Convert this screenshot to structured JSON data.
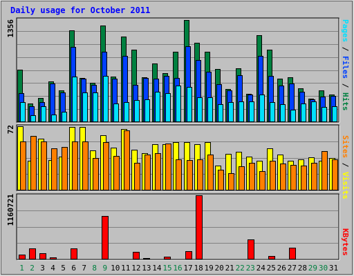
{
  "title": "Daily usage for October 2011",
  "colors": {
    "background": "#c0c0c0",
    "frame": "#e0e0e0",
    "title": "#0000ff",
    "grid": "#808080",
    "hits": "#008040",
    "files": "#0040ff",
    "pages": "#00e0ff",
    "visits": "#ffff00",
    "sites": "#ff8000",
    "kbytes": "#ff0000",
    "weekday_label": "#000000",
    "weekend_label": "#008040"
  },
  "chart_data": [
    {
      "type": "bar",
      "panel": "hits-files-pages",
      "ymax_label": "1356",
      "ymax": 1356,
      "legend": {
        "pages": "Pages",
        "sep1": " / ",
        "files": "Files",
        "sep2": " / ",
        "hits": "Hits"
      },
      "categories": [
        "1",
        "2",
        "3",
        "4",
        "5",
        "6",
        "7",
        "8",
        "9",
        "10",
        "11",
        "12",
        "13",
        "14",
        "15",
        "16",
        "17",
        "18",
        "19",
        "20",
        "21",
        "22",
        "23",
        "24",
        "25",
        "26",
        "27",
        "28",
        "29",
        "30",
        "31"
      ],
      "weekend": [
        1,
        2,
        8,
        9,
        15,
        16,
        22,
        23,
        29,
        30
      ],
      "series": [
        {
          "name": "Hits",
          "key": "hits",
          "values": [
            690,
            250,
            320,
            540,
            420,
            1210,
            580,
            520,
            1270,
            600,
            1130,
            960,
            590,
            770,
            650,
            930,
            1350,
            1050,
            930,
            700,
            440,
            710,
            370,
            1150,
            960,
            570,
            590,
            450,
            310,
            420,
            360
          ]
        },
        {
          "name": "Files",
          "key": "files",
          "values": [
            380,
            210,
            260,
            510,
            390,
            990,
            570,
            490,
            930,
            570,
            870,
            490,
            580,
            570,
            610,
            580,
            1000,
            820,
            660,
            500,
            420,
            620,
            360,
            870,
            610,
            480,
            510,
            400,
            300,
            340,
            350
          ]
        },
        {
          "name": "Pages",
          "key": "pages",
          "values": [
            260,
            90,
            210,
            100,
            140,
            600,
            390,
            390,
            610,
            250,
            260,
            290,
            300,
            400,
            380,
            480,
            460,
            330,
            330,
            240,
            260,
            270,
            270,
            360,
            260,
            240,
            160,
            250,
            270,
            200,
            210
          ]
        }
      ]
    },
    {
      "type": "bar",
      "panel": "visits-sites",
      "ymax_label": "72",
      "ymax": 72,
      "legend": {
        "sites": "Sites",
        "sep": " / ",
        "visits": "Visits"
      },
      "categories": [
        "1",
        "2",
        "3",
        "4",
        "5",
        "6",
        "7",
        "8",
        "9",
        "10",
        "11",
        "12",
        "13",
        "14",
        "15",
        "16",
        "17",
        "18",
        "19",
        "20",
        "21",
        "22",
        "23",
        "24",
        "25",
        "26",
        "27",
        "28",
        "29",
        "30",
        "31"
      ],
      "series": [
        {
          "name": "Visits",
          "key": "visits",
          "values": [
            72,
            33,
            58,
            34,
            38,
            71,
            71,
            45,
            62,
            48,
            69,
            46,
            42,
            52,
            52,
            54,
            54,
            52,
            54,
            28,
            41,
            43,
            38,
            33,
            47,
            40,
            33,
            35,
            37,
            33,
            36
          ]
        },
        {
          "name": "Sites",
          "key": "sites",
          "values": [
            55,
            61,
            55,
            47,
            49,
            55,
            55,
            36,
            54,
            39,
            67,
            31,
            40,
            42,
            53,
            35,
            34,
            35,
            40,
            23,
            19,
            27,
            31,
            22,
            33,
            30,
            29,
            28,
            31,
            44,
            35
          ]
        }
      ]
    },
    {
      "type": "bar",
      "panel": "kbytes",
      "ymax_label": "1160721",
      "ymax": 1160721,
      "legend": {
        "kbytes": "KBytes"
      },
      "categories": [
        "1",
        "2",
        "3",
        "4",
        "5",
        "6",
        "7",
        "8",
        "9",
        "10",
        "11",
        "12",
        "13",
        "14",
        "15",
        "16",
        "17",
        "18",
        "19",
        "20",
        "21",
        "22",
        "23",
        "24",
        "25",
        "26",
        "27",
        "28",
        "29",
        "30",
        "31"
      ],
      "series": [
        {
          "name": "KBytes",
          "key": "kbytes",
          "values": [
            90000,
            195000,
            115000,
            35000,
            8000,
            195000,
            10000,
            10000,
            790000,
            10000,
            10000,
            140000,
            25000,
            10000,
            55000,
            10000,
            145000,
            1160721,
            10000,
            10000,
            10000,
            10000,
            360000,
            10000,
            60000,
            8000,
            210000,
            8000,
            8000,
            8000,
            8000
          ]
        }
      ]
    }
  ]
}
